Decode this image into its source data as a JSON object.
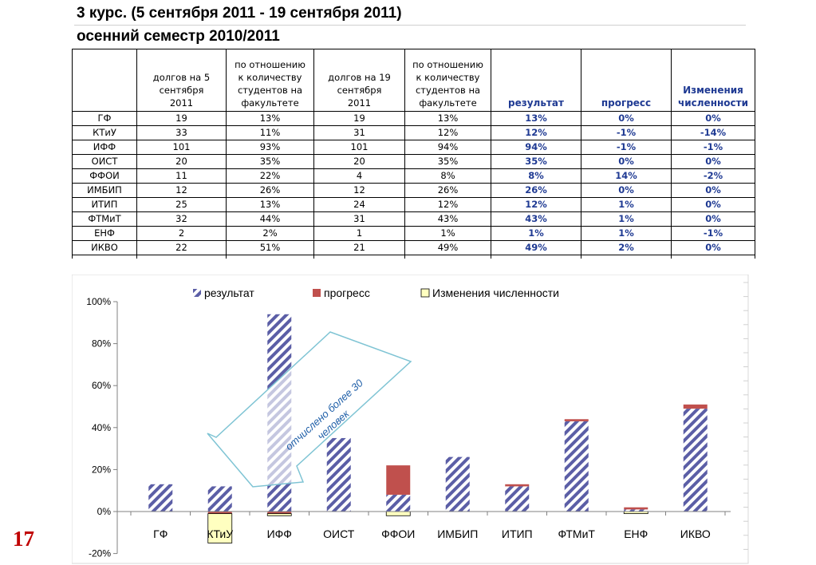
{
  "slide": {
    "title_line1": "3 курс.  (5 сентября 2011  -  19 сентября 2011)",
    "title_line2": "осенний семестр 2010/2011",
    "page_number": "17"
  },
  "table": {
    "headers": [
      [],
      [
        "долгов на 5",
        "сентября",
        "2011"
      ],
      [
        "по отношению",
        "к количеству",
        "студентов на",
        "факультете"
      ],
      [
        "долгов на 19",
        "сентября",
        "2011"
      ],
      [
        "по отношению",
        "к количеству",
        "студентов на",
        "факультете"
      ],
      [
        "результат"
      ],
      [
        "прогресс"
      ],
      [
        "Изменения",
        "численности"
      ]
    ],
    "rows": [
      [
        "ГФ",
        "19",
        "13%",
        "19",
        "13%",
        "13%",
        "0%",
        "0%"
      ],
      [
        "КТиУ",
        "33",
        "11%",
        "31",
        "12%",
        "12%",
        "-1%",
        "-14%"
      ],
      [
        "ИФФ",
        "101",
        "93%",
        "101",
        "94%",
        "94%",
        "-1%",
        "-1%"
      ],
      [
        "ОИСТ",
        "20",
        "35%",
        "20",
        "35%",
        "35%",
        "0%",
        "0%"
      ],
      [
        "ФФОИ",
        "11",
        "22%",
        "4",
        "8%",
        "8%",
        "14%",
        "-2%"
      ],
      [
        "ИМБИП",
        "12",
        "26%",
        "12",
        "26%",
        "26%",
        "0%",
        "0%"
      ],
      [
        "ИТИП",
        "25",
        "13%",
        "24",
        "12%",
        "12%",
        "1%",
        "0%"
      ],
      [
        "ФТМиТ",
        "32",
        "44%",
        "31",
        "43%",
        "43%",
        "1%",
        "0%"
      ],
      [
        "ЕНФ",
        "2",
        "2%",
        "1",
        "1%",
        "1%",
        "1%",
        "-1%"
      ],
      [
        "ИКВО",
        "22",
        "51%",
        "21",
        "49%",
        "49%",
        "2%",
        "0%"
      ]
    ]
  },
  "chart_data": {
    "type": "bar",
    "stacked": true,
    "categories": [
      "ГФ",
      "КТиУ",
      "ИФФ",
      "ОИСТ",
      "ФФОИ",
      "ИМБИП",
      "ИТИП",
      "ФТМиТ",
      "ЕНФ",
      "ИКВО"
    ],
    "series": [
      {
        "name": "результат",
        "values": [
          13,
          12,
          94,
          35,
          8,
          26,
          12,
          43,
          1,
          49
        ],
        "color": "#5b5ea6",
        "pattern": "diagonal-stripes"
      },
      {
        "name": "прогресс",
        "values": [
          0,
          -1,
          -1,
          0,
          14,
          0,
          1,
          1,
          1,
          2
        ],
        "color": "#c0504d"
      },
      {
        "name": "Изменения численности",
        "values": [
          0,
          -14,
          -1,
          0,
          -2,
          0,
          0,
          0,
          -1,
          0
        ],
        "color": "#ffffc0"
      }
    ],
    "ylim": [
      -20,
      100
    ],
    "yticks": [
      "-20%",
      "0%",
      "20%",
      "40%",
      "60%",
      "80%",
      "100%"
    ],
    "ytick_values": [
      -20,
      0,
      20,
      40,
      60,
      80,
      100
    ],
    "legend": "top",
    "annotation": {
      "text_line1": "отчислено более 30",
      "text_line2": "человек",
      "points_to": "КТиУ"
    }
  }
}
